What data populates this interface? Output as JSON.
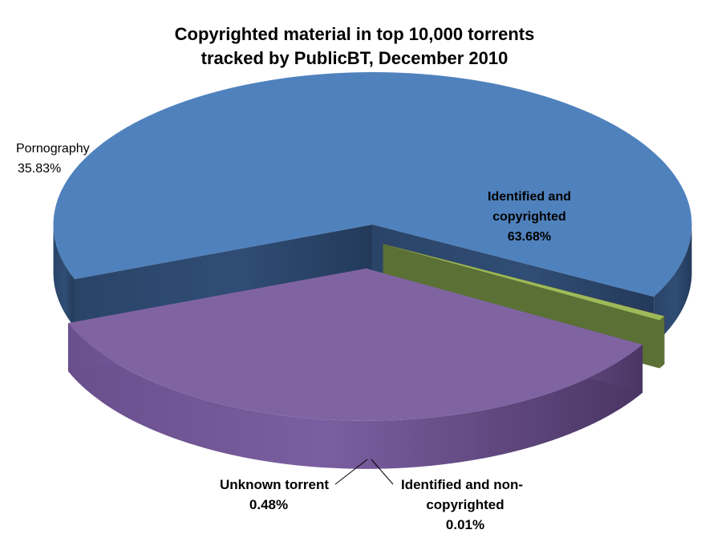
{
  "chart_data": {
    "type": "pie",
    "title": [
      "Copyrighted material in top 10,000 torrents",
      "tracked by PublicBT, December 2010"
    ],
    "slices": [
      {
        "label": "Identified and copyrighted",
        "label_lines": [
          "Identified and",
          "copyrighted"
        ],
        "value": 63.68,
        "value_label": "63.68%",
        "color": "#4F81BD"
      },
      {
        "label": "Identified and non-copyrighted",
        "label_lines": [
          "Identified and non-",
          "copyrighted"
        ],
        "value": 0.01,
        "value_label": "0.01%",
        "color": "#C0504D"
      },
      {
        "label": "Unknown torrent",
        "label_lines": [
          "Unknown torrent"
        ],
        "value": 0.48,
        "value_label": "0.48%",
        "color": "#9BBB59"
      },
      {
        "label": "Pornography",
        "label_lines": [
          "Pornography"
        ],
        "value": 35.83,
        "value_label": "35.83%",
        "color": "#8064A2"
      }
    ],
    "style": "3D exploded pie",
    "legend": "none (data labels only)"
  }
}
